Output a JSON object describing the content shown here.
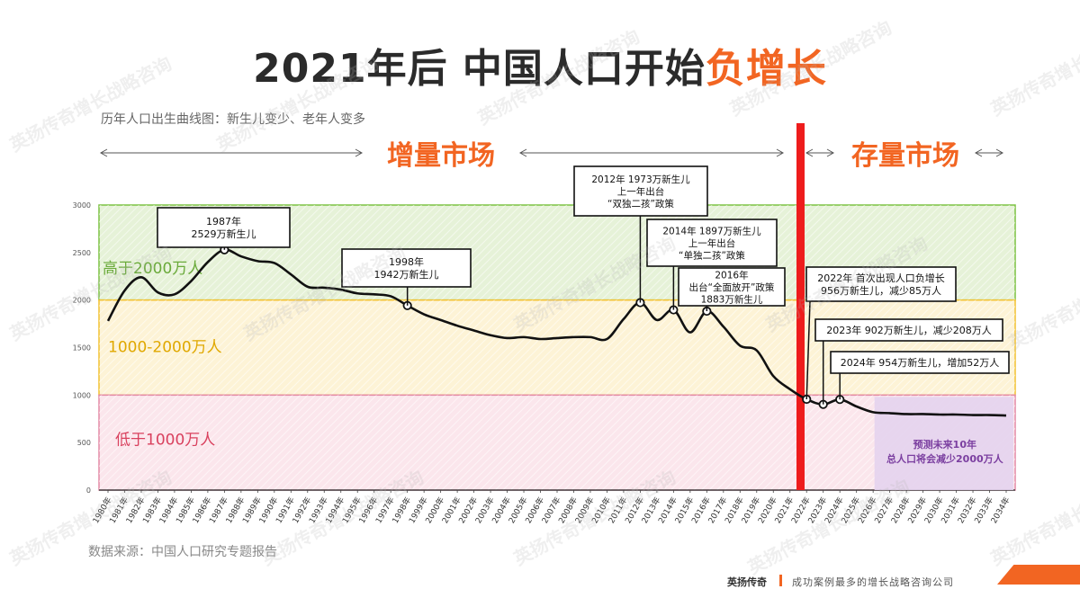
{
  "title_main": "2021年后 中国人口开始",
  "title_highlight": "负增长",
  "subtitle": "历年人口出生曲线图：新生儿变少、老年人变多",
  "source": "数据来源：中国人口研究专题报告",
  "footer_brand": "英扬传奇",
  "footer_slogan": "成功案例最多的增长战略咨询公司",
  "watermark": "英扬传奇增长战略咨询",
  "chart_data": {
    "type": "line",
    "y_ticks": [
      "0",
      "500",
      "1000",
      "1500",
      "2000",
      "2500",
      "3000"
    ],
    "ylim": [
      0,
      3000
    ],
    "x_labels": [
      "1980年",
      "1981年",
      "1982年",
      "1983年",
      "1984年",
      "1985年",
      "1986年",
      "1987年",
      "1988年",
      "1989年",
      "1990年",
      "1991年",
      "1992年",
      "1993年",
      "1994年",
      "1995年",
      "1996年",
      "1997年",
      "1998年",
      "1999年",
      "2000年",
      "2001年",
      "2002年",
      "2003年",
      "2004年",
      "2005年",
      "2006年",
      "2007年",
      "2008年",
      "2009年",
      "2010年",
      "2011年",
      "2012年",
      "2013年",
      "2014年",
      "2015年",
      "2016年",
      "2017年",
      "2018年",
      "2019年",
      "2020年",
      "2021年",
      "2022年",
      "2023年",
      "2024年",
      "2025年",
      "2026年",
      "2027年",
      "2028年",
      "2029年",
      "2030年",
      "2031年",
      "2032年",
      "2033年",
      "2034年"
    ],
    "series": [
      {
        "values": [
          1780,
          2100,
          2240,
          2080,
          2060,
          2200,
          2400,
          2529,
          2460,
          2410,
          2390,
          2270,
          2140,
          2130,
          2110,
          2070,
          2060,
          2040,
          1942,
          1850,
          1790,
          1730,
          1680,
          1630,
          1600,
          1610,
          1590,
          1600,
          1610,
          1610,
          1590,
          1800,
          1973,
          1790,
          1897,
          1660,
          1883,
          1720,
          1520,
          1470,
          1200,
          1062,
          956,
          902,
          954,
          880,
          820,
          810,
          800,
          800,
          795,
          795,
          790,
          790,
          785
        ]
      }
    ],
    "bands": [
      {
        "label": "高于2000万人",
        "from": 2000,
        "to": 3000,
        "color": "#e6f2d8",
        "stroke": "#7cc242",
        "text_color": "#6aaa3a"
      },
      {
        "label": "1000-2000万人",
        "from": 1000,
        "to": 2000,
        "color": "#fdf3d6",
        "stroke": "#f2c230",
        "text_color": "#e0a800"
      },
      {
        "label": "低于1000万人",
        "from": 0,
        "to": 1000,
        "color": "#fbe6ec",
        "stroke": "#e38aa6",
        "text_color": "#d9415e"
      }
    ],
    "markets": {
      "left": "增量市场",
      "right": "存量市场",
      "color": "#f26522"
    },
    "divider_after": "2021年",
    "annotations": [
      {
        "year": "1987年",
        "lines": [
          "1987年",
          "2529万新生儿"
        ]
      },
      {
        "year": "1998年",
        "lines": [
          "1998年",
          "1942万新生儿"
        ]
      },
      {
        "year": "2012年",
        "lines": [
          "2012年 1973万新生儿",
          "上一年出台",
          "“双独二孩”政策"
        ]
      },
      {
        "year": "2014年",
        "lines": [
          "2014年 1897万新生儿",
          "上一年出台",
          "“单独二孩”政策"
        ]
      },
      {
        "year": "2016年",
        "lines": [
          "2016年",
          "出台“全面放开”政策",
          "1883万新生儿"
        ]
      },
      {
        "year": "2022年",
        "lines": [
          "2022年 首次出现人口负增长",
          "956万新生儿，减少85万人"
        ]
      },
      {
        "year": "2023年",
        "lines": [
          "2023年 902万新生儿，减少208万人"
        ]
      },
      {
        "year": "2024年",
        "lines": [
          "2024年 954万新生儿，增加52万人"
        ]
      }
    ],
    "forecast": {
      "lines": [
        "预测未来10年",
        "总人口将会减少2000万人"
      ],
      "color": "#7b3fa0",
      "fill": "#e4d3ee",
      "from": "2025年"
    }
  }
}
